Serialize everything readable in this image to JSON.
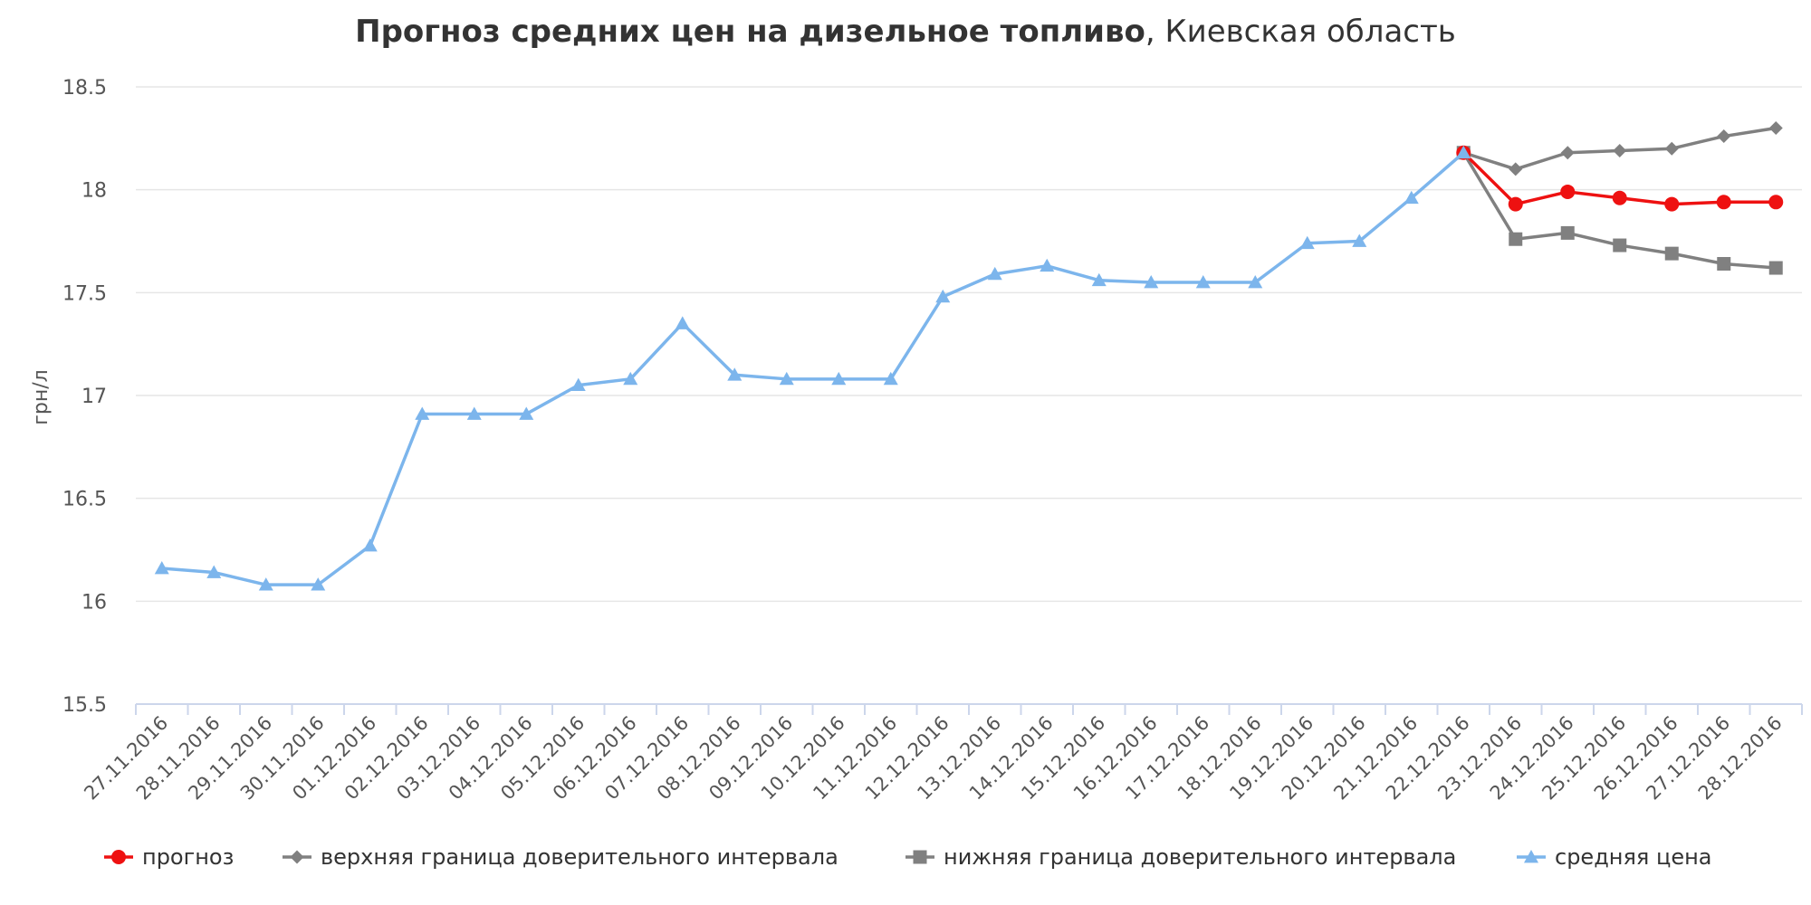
{
  "chart_data": {
    "type": "line",
    "title_bold": "Прогноз средних цен на дизельное топливо",
    "title_rest": ", Киевская область",
    "xlabel": "",
    "ylabel": "грн/л",
    "ylim": [
      15.5,
      18.5
    ],
    "yticks": [
      "15.5",
      "16",
      "16.5",
      "17",
      "17.5",
      "18",
      "18.5"
    ],
    "grid": true,
    "legend_position": "bottom",
    "categories": [
      "27.11.2016",
      "28.11.2016",
      "29.11.2016",
      "30.11.2016",
      "01.12.2016",
      "02.12.2016",
      "03.12.2016",
      "04.12.2016",
      "05.12.2016",
      "06.12.2016",
      "07.12.2016",
      "08.12.2016",
      "09.12.2016",
      "10.12.2016",
      "11.12.2016",
      "12.12.2016",
      "13.12.2016",
      "14.12.2016",
      "15.12.2016",
      "16.12.2016",
      "17.12.2016",
      "18.12.2016",
      "19.12.2016",
      "20.12.2016",
      "21.12.2016",
      "22.12.2016",
      "23.12.2016",
      "24.12.2016",
      "25.12.2016",
      "26.12.2016",
      "27.12.2016",
      "28.12.2016"
    ],
    "series": [
      {
        "name": "прогноз",
        "color": "#ee1111",
        "marker": "circle",
        "values": [
          null,
          null,
          null,
          null,
          null,
          null,
          null,
          null,
          null,
          null,
          null,
          null,
          null,
          null,
          null,
          null,
          null,
          null,
          null,
          null,
          null,
          null,
          null,
          null,
          null,
          18.18,
          17.93,
          17.99,
          17.96,
          17.93,
          17.94,
          17.94
        ]
      },
      {
        "name": "верхняя граница доверительного интервала",
        "color": "#808080",
        "marker": "diamond",
        "values": [
          null,
          null,
          null,
          null,
          null,
          null,
          null,
          null,
          null,
          null,
          null,
          null,
          null,
          null,
          null,
          null,
          null,
          null,
          null,
          null,
          null,
          null,
          null,
          null,
          null,
          18.18,
          18.1,
          18.18,
          18.19,
          18.2,
          18.26,
          18.3
        ]
      },
      {
        "name": "нижняя граница доверительного интервала",
        "color": "#808080",
        "marker": "square",
        "values": [
          null,
          null,
          null,
          null,
          null,
          null,
          null,
          null,
          null,
          null,
          null,
          null,
          null,
          null,
          null,
          null,
          null,
          null,
          null,
          null,
          null,
          null,
          null,
          null,
          null,
          18.18,
          17.76,
          17.79,
          17.73,
          17.69,
          17.64,
          17.62
        ]
      },
      {
        "name": "средняя цена",
        "color": "#7cb5ec",
        "marker": "triangle",
        "values": [
          16.16,
          16.14,
          16.08,
          16.08,
          16.27,
          16.91,
          16.91,
          16.91,
          17.05,
          17.08,
          17.35,
          17.1,
          17.08,
          17.08,
          17.08,
          17.48,
          17.59,
          17.63,
          17.56,
          17.55,
          17.55,
          17.55,
          17.74,
          17.75,
          17.96,
          18.18,
          null,
          null,
          null,
          null,
          null,
          null
        ]
      }
    ]
  }
}
